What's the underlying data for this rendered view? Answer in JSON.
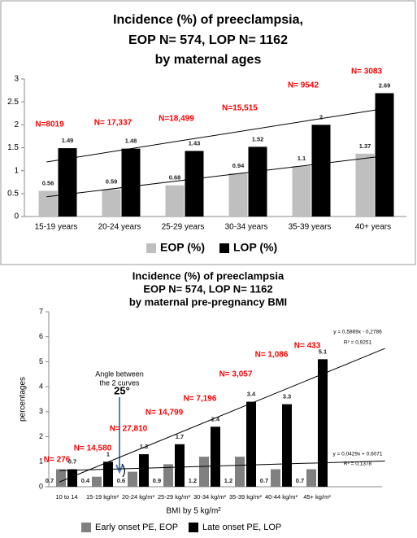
{
  "chart_data": [
    {
      "type": "bar",
      "title": [
        "Incidence (%) of preeclampsia,",
        "EOP N= 574, LOP N= 1162",
        "by maternal ages"
      ],
      "categories": [
        "15-19 years",
        "20-24 years",
        "25-29 years",
        "30-34 years",
        "35-39 years",
        "40+  years"
      ],
      "series": [
        {
          "name": "EOP (%)",
          "color": "#bfbfbf",
          "values": [
            0.56,
            0.59,
            0.68,
            0.94,
            1.1,
            1.37
          ]
        },
        {
          "name": "LOP (%)",
          "color": "#000000",
          "values": [
            1.49,
            1.48,
            1.43,
            1.52,
            2,
            2.69
          ]
        }
      ],
      "n_labels": [
        "N=8019",
        "N= 17,337",
        "N=18,499",
        "N=15,515",
        "N= 9542",
        "N= 3083"
      ],
      "ylim": [
        0,
        3
      ],
      "yticks": [
        0,
        0.5,
        1,
        1.5,
        2,
        2.5,
        3
      ],
      "trendline": true
    },
    {
      "type": "bar",
      "title": [
        "Incidence (%) of preeclampsia",
        "EOP N= 574, LOP N= 1162",
        "by maternal pre-pregnancy BMI"
      ],
      "categories": [
        "10 to 14",
        "15-19 kg/m²",
        "20-24 kg/m²",
        "25-29 kg/m²",
        "30-34 kg/m²",
        "35-39 kg/m²",
        "40-44 kg/m²",
        "45+ kg/m²"
      ],
      "series": [
        {
          "name": "Early onset PE, EOP",
          "color": "#808080",
          "values": [
            0.7,
            0.4,
            0.6,
            0.9,
            1.2,
            1.2,
            0.7,
            0.7
          ]
        },
        {
          "name": "Late onset PE, LOP",
          "color": "#000000",
          "values": [
            0.7,
            1,
            1.3,
            1.7,
            2.4,
            3.4,
            3.3,
            5.1
          ]
        }
      ],
      "n_labels": [
        "N= 276",
        "N= 14,580",
        "N= 27,810",
        "N= 14,799",
        "N= 7,196",
        "N= 3,057",
        "N= 1,086",
        "N= 433"
      ],
      "trend_labels": [
        [
          "y = 0,0429x + 0,6071",
          "R² = 0,1378"
        ],
        [
          "y = 0,5869x - 0,2786",
          "R² = 0,9251"
        ]
      ],
      "annotation": [
        "Angle between",
        "the 2 curves",
        "25°"
      ],
      "ylabel": "percentages",
      "xlabel": "BMI by 5 kg/m²",
      "ylim": [
        0,
        7
      ],
      "yticks": [
        0,
        1,
        2,
        3,
        4,
        5,
        6,
        7
      ],
      "trendline": true
    }
  ]
}
